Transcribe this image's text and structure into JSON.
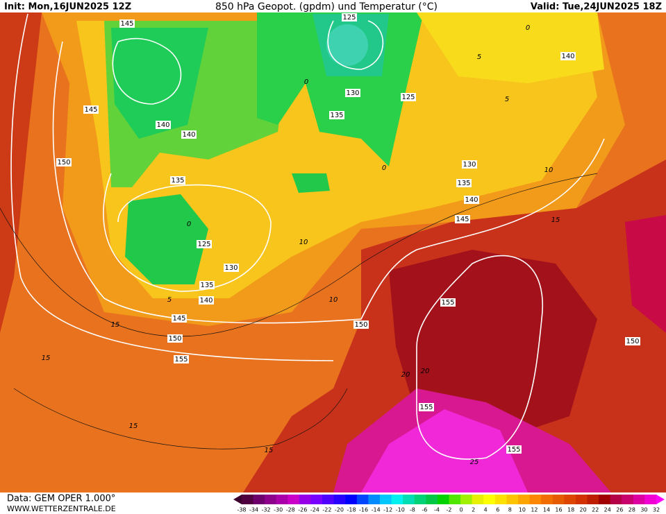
{
  "header": {
    "init": "Init: Mon,16JUN2025 12Z",
    "title": "850 hPa Geopot. (gpdm) und Temperatur (°C)",
    "valid": "Valid: Tue,24JUN2025 18Z"
  },
  "geopotential_labels": [
    "145",
    "125",
    "140",
    "130",
    "125",
    "145",
    "135",
    "140",
    "140",
    "150",
    "130",
    "135",
    "135",
    "140",
    "145",
    "125",
    "130",
    "135",
    "140",
    "155",
    "145",
    "150",
    "150",
    "150",
    "155",
    "155",
    "155"
  ],
  "temperature_labels": [
    "0",
    "5",
    "5",
    "0",
    "0",
    "10",
    "0",
    "10",
    "5",
    "10",
    "15",
    "15",
    "15",
    "20",
    "20",
    "15",
    "15",
    "25"
  ],
  "footer": {
    "data": "Data: GEM OPER 1.000°",
    "url": "WWW.WETTERZENTRALE.DE"
  },
  "scale_labels": [
    "-38",
    "-34",
    "-32",
    "-30",
    "-28",
    "-26",
    "-24",
    "-22",
    "-20",
    "-18",
    "-16",
    "-14",
    "-12",
    "-10",
    "-8",
    "-6",
    "-4",
    "-2",
    "0",
    "2",
    "4",
    "6",
    "8",
    "10",
    "12",
    "14",
    "16",
    "18",
    "20",
    "22",
    "24",
    "26",
    "28",
    "30",
    "32"
  ]
}
